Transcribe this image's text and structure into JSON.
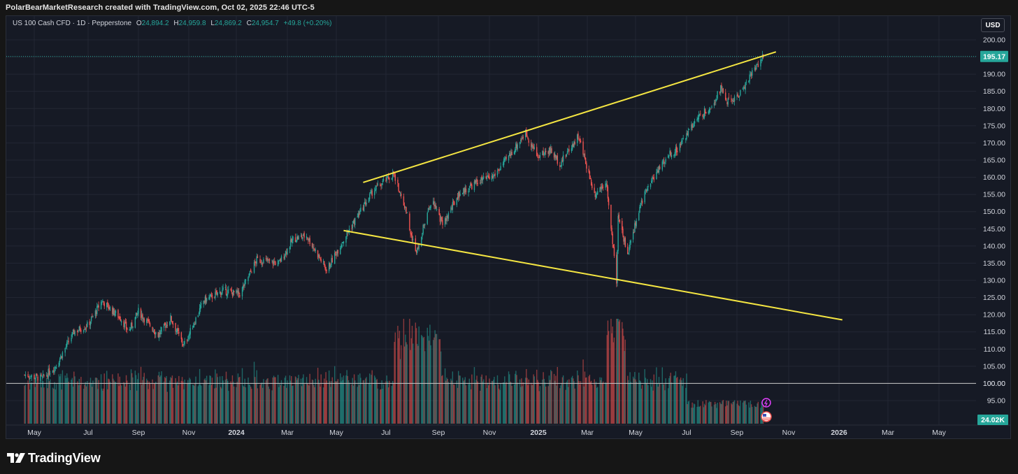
{
  "header": {
    "watermark_text": "PolarBearMarketResearch created with TradingView.com, Oct 02, 2025 22:46 UTC-5"
  },
  "symbol": {
    "name": "US 100 Cash CFD · 1D · Pepperstone",
    "open_label": "O",
    "open": "24,894.2",
    "high_label": "H",
    "high": "24,959.8",
    "low_label": "L",
    "low": "24,869.2",
    "close_label": "C",
    "close": "24,954.7",
    "change": "+49.8 (+0.20%)"
  },
  "currency_button": "USD",
  "brand": {
    "name": "TradingView"
  },
  "colors": {
    "background": "#161a25",
    "up": "#26a69a",
    "down": "#ef5350",
    "trendline": "#f5e642",
    "price_tag": "#26a69a",
    "grid": "#232734"
  },
  "chart_data": {
    "type": "candlestick",
    "y_axis_range": [
      92,
      202
    ],
    "y_ticks": [
      "200.00",
      "195.00",
      "190.00",
      "185.00",
      "180.00",
      "175.00",
      "170.00",
      "165.00",
      "160.00",
      "155.00",
      "150.00",
      "145.00",
      "140.00",
      "135.00",
      "130.00",
      "125.00",
      "120.00",
      "115.00",
      "110.00",
      "105.00",
      "100.00",
      "95.00"
    ],
    "x_ticks": [
      "May",
      "Jul",
      "Sep",
      "Nov",
      "2024",
      "Mar",
      "May",
      "Jul",
      "Sep",
      "Nov",
      "2025",
      "Mar",
      "May",
      "Jul",
      "Sep",
      "Nov",
      "2026",
      "Mar",
      "May"
    ],
    "x_tick_dates": [
      "2023-05-01",
      "2023-07-01",
      "2023-09-01",
      "2023-11-01",
      "2024-01-01",
      "2024-03-01",
      "2024-05-01",
      "2024-07-01",
      "2024-09-01",
      "2024-11-01",
      "2025-01-01",
      "2025-03-01",
      "2025-05-01",
      "2025-07-01",
      "2025-09-01",
      "2025-11-01",
      "2026-01-01",
      "2026-03-01",
      "2026-05-01"
    ],
    "last_price_label": "195.17",
    "last_price": 195.17,
    "reference_line_label": "100.00",
    "reference_line": 100,
    "volume_label": "24.02K",
    "price_path": [
      {
        "date": "2023-04-20",
        "value": 102.5
      },
      {
        "date": "2023-05-10",
        "value": 101.5
      },
      {
        "date": "2023-05-25",
        "value": 105
      },
      {
        "date": "2023-06-15",
        "value": 115
      },
      {
        "date": "2023-07-01",
        "value": 117
      },
      {
        "date": "2023-07-18",
        "value": 124
      },
      {
        "date": "2023-08-10",
        "value": 119
      },
      {
        "date": "2023-08-20",
        "value": 115
      },
      {
        "date": "2023-09-01",
        "value": 121
      },
      {
        "date": "2023-09-25",
        "value": 114
      },
      {
        "date": "2023-10-10",
        "value": 119
      },
      {
        "date": "2023-10-26",
        "value": 111
      },
      {
        "date": "2023-11-20",
        "value": 124
      },
      {
        "date": "2023-12-15",
        "value": 127
      },
      {
        "date": "2024-01-05",
        "value": 126
      },
      {
        "date": "2024-01-25",
        "value": 136
      },
      {
        "date": "2024-02-20",
        "value": 135
      },
      {
        "date": "2024-03-08",
        "value": 142
      },
      {
        "date": "2024-03-25",
        "value": 143
      },
      {
        "date": "2024-04-19",
        "value": 133
      },
      {
        "date": "2024-05-15",
        "value": 144
      },
      {
        "date": "2024-06-15",
        "value": 156
      },
      {
        "date": "2024-07-10",
        "value": 161
      },
      {
        "date": "2024-07-25",
        "value": 150
      },
      {
        "date": "2024-08-05",
        "value": 138
      },
      {
        "date": "2024-08-25",
        "value": 154
      },
      {
        "date": "2024-09-06",
        "value": 146
      },
      {
        "date": "2024-09-25",
        "value": 155
      },
      {
        "date": "2024-10-20",
        "value": 159
      },
      {
        "date": "2024-11-05",
        "value": 160
      },
      {
        "date": "2024-11-25",
        "value": 166
      },
      {
        "date": "2024-12-16",
        "value": 173
      },
      {
        "date": "2024-12-31",
        "value": 166
      },
      {
        "date": "2025-01-15",
        "value": 168
      },
      {
        "date": "2025-01-27",
        "value": 164
      },
      {
        "date": "2025-02-18",
        "value": 172
      },
      {
        "date": "2025-03-10",
        "value": 155
      },
      {
        "date": "2025-03-25",
        "value": 159
      },
      {
        "date": "2025-04-07",
        "value": 130
      },
      {
        "date": "2025-04-09",
        "value": 148
      },
      {
        "date": "2025-04-21",
        "value": 138
      },
      {
        "date": "2025-05-12",
        "value": 156
      },
      {
        "date": "2025-06-10",
        "value": 167
      },
      {
        "date": "2025-06-20",
        "value": 168
      },
      {
        "date": "2025-07-10",
        "value": 176
      },
      {
        "date": "2025-08-01",
        "value": 181
      },
      {
        "date": "2025-08-12",
        "value": 186
      },
      {
        "date": "2025-08-20",
        "value": 182
      },
      {
        "date": "2025-09-01",
        "value": 183
      },
      {
        "date": "2025-09-20",
        "value": 191
      },
      {
        "date": "2025-10-02",
        "value": 195.2
      }
    ],
    "trendlines": [
      {
        "name": "upper",
        "start": {
          "date": "2024-06-03",
          "value": 158.5
        },
        "end": {
          "date": "2025-10-17",
          "value": 196.5
        }
      },
      {
        "name": "lower",
        "start": {
          "date": "2024-05-10",
          "value": 144.5
        },
        "end": {
          "date": "2026-01-05",
          "value": 118.5
        }
      }
    ]
  }
}
